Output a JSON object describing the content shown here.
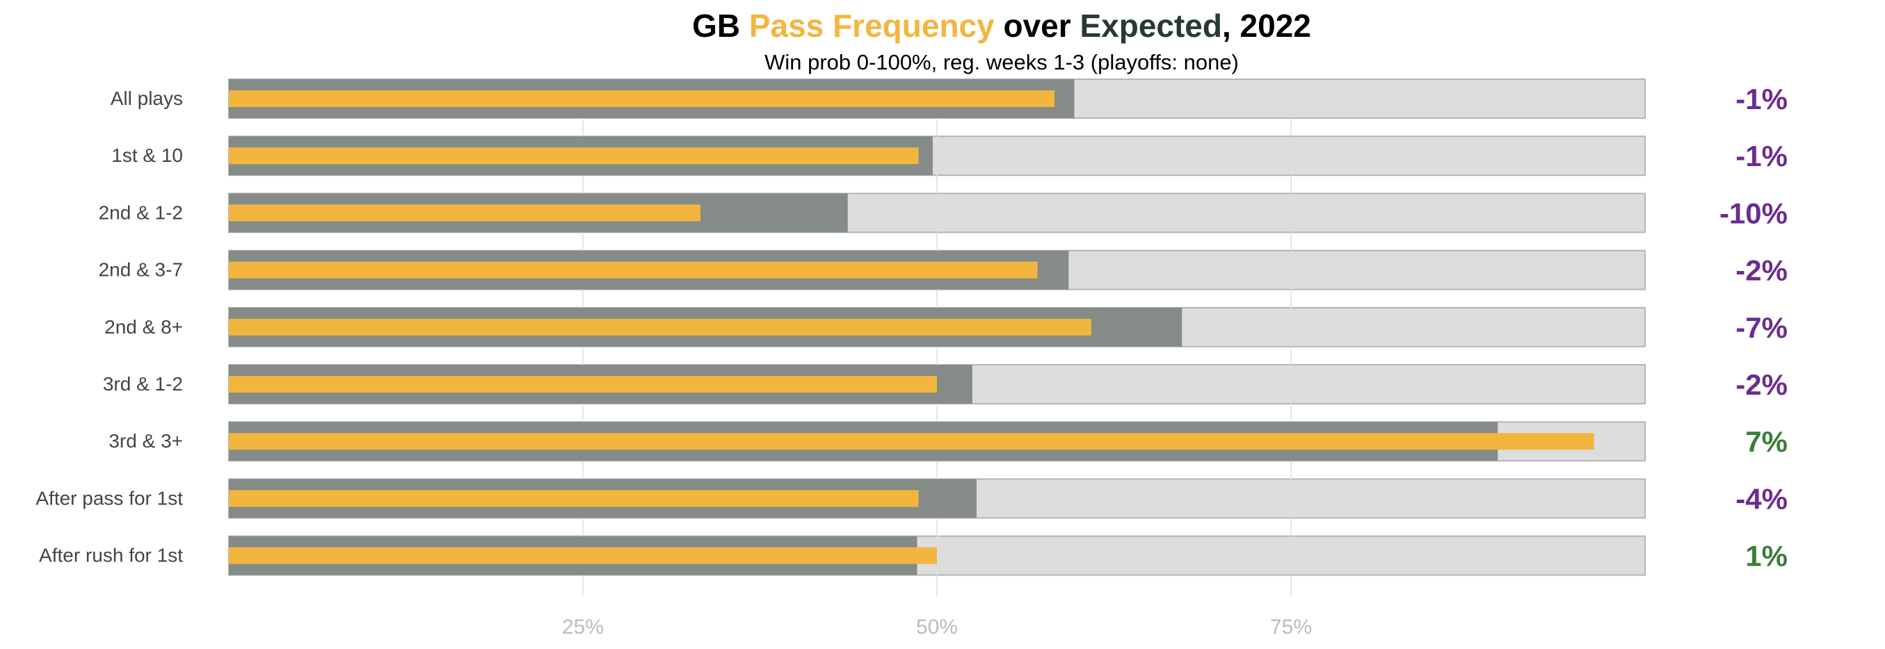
{
  "title": {
    "team": "GB",
    "pass_label": "Pass Frequency",
    "over": "over",
    "expected_label": "Expected",
    "year_suffix": ", 2022"
  },
  "subtitle": "Win prob 0-100%, reg. weeks 1-3 (playoffs: none)",
  "colors": {
    "actual": "#F2B63F",
    "expected": "#858B86",
    "background_bar": "#DDDDDD",
    "negative": "#6A2C91",
    "positive": "#3A7D3A",
    "grid": "#DDDDDD",
    "axis_text": "#BBBBBB",
    "label_text": "#444444"
  },
  "chart_data": {
    "type": "bar",
    "orientation": "horizontal",
    "categories": [
      "All plays",
      "1st & 10",
      "2nd & 1-2",
      "2nd & 3-7",
      "2nd & 8+",
      "3rd & 1-2",
      "3rd & 3+",
      "After pass for 1st",
      "After rush for 1st"
    ],
    "series": [
      {
        "name": "Expected",
        "values": [
          59.7,
          49.7,
          43.7,
          59.3,
          67.3,
          52.5,
          89.6,
          52.8,
          48.6
        ]
      },
      {
        "name": "Pass Frequency",
        "values": [
          58.3,
          48.7,
          33.3,
          57.1,
          60.9,
          50.0,
          96.4,
          48.7,
          50.0
        ]
      }
    ],
    "difference_labels": [
      "-1%",
      "-1%",
      "-10%",
      "-2%",
      "-7%",
      "-2%",
      "7%",
      "-4%",
      "1%"
    ],
    "x_ticks": [
      25,
      50,
      75
    ],
    "x_tick_labels": [
      "25%",
      "50%",
      "75%"
    ],
    "xlim": [
      0,
      100
    ],
    "grid": true,
    "legend": "none"
  }
}
